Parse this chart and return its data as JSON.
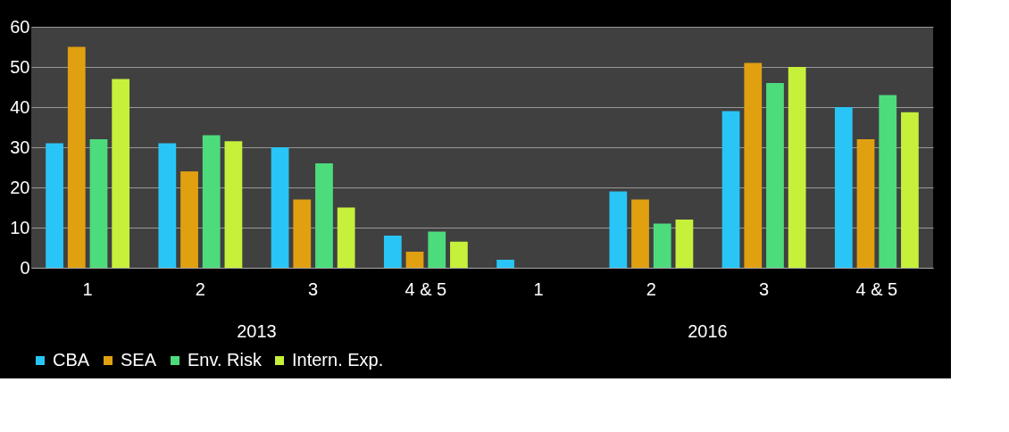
{
  "chart_data": {
    "type": "bar",
    "categories": [
      "1",
      "2",
      "3",
      "4 & 5",
      "1",
      "2",
      "3",
      "4 & 5"
    ],
    "series": [
      {
        "name": "CBA",
        "color": "#29c5f6",
        "values": [
          31,
          31,
          30,
          8,
          2,
          19,
          39,
          40
        ]
      },
      {
        "name": "SEA",
        "color": "#e0a010",
        "values": [
          55,
          24,
          17,
          4,
          null,
          17,
          51,
          32
        ]
      },
      {
        "name": "Env. Risk",
        "color": "#4cdc7c",
        "values": [
          32,
          33,
          26,
          9,
          null,
          11,
          46,
          43
        ]
      },
      {
        "name": "Intern. Exp.",
        "color": "#c6f03a",
        "values": [
          47,
          31.5,
          15,
          6.5,
          null,
          12,
          50,
          38.7
        ]
      }
    ],
    "annotations": [
      "2013",
      "2016"
    ],
    "ylim": [
      0,
      60
    ],
    "yticks": [
      0,
      10,
      20,
      30,
      40,
      50,
      60
    ],
    "grid": "y",
    "legend": "bottom"
  }
}
